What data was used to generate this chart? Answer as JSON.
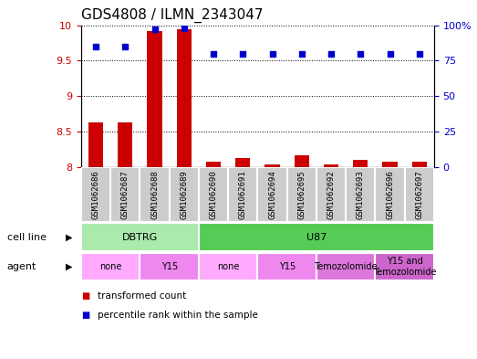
{
  "title": "GDS4808 / ILMN_2343047",
  "samples": [
    "GSM1062686",
    "GSM1062687",
    "GSM1062688",
    "GSM1062689",
    "GSM1062690",
    "GSM1062691",
    "GSM1062694",
    "GSM1062695",
    "GSM1062692",
    "GSM1062693",
    "GSM1062696",
    "GSM1062697"
  ],
  "transformed_count": [
    8.63,
    8.63,
    9.92,
    9.94,
    8.07,
    8.12,
    8.03,
    8.17,
    8.03,
    8.1,
    8.07,
    8.07
  ],
  "percentile_rank": [
    85,
    85,
    97,
    98,
    80,
    80,
    80,
    80,
    80,
    80,
    80,
    80
  ],
  "ylim_left": [
    8.0,
    10.0
  ],
  "ylim_right": [
    0,
    100
  ],
  "yticks_left": [
    8.0,
    8.5,
    9.0,
    9.5,
    10.0
  ],
  "yticks_right": [
    0,
    25,
    50,
    75,
    100
  ],
  "bar_color": "#cc0000",
  "dot_color": "#0000cc",
  "sample_box_color": "#cccccc",
  "cell_line_groups": [
    {
      "label": "DBTRG",
      "start": 0,
      "end": 3,
      "color": "#aaeaaa"
    },
    {
      "label": "U87",
      "start": 4,
      "end": 11,
      "color": "#55cc55"
    }
  ],
  "agent_groups": [
    {
      "label": "none",
      "start": 0,
      "end": 1,
      "color": "#ffaaff"
    },
    {
      "label": "Y15",
      "start": 2,
      "end": 3,
      "color": "#ee88ee"
    },
    {
      "label": "none",
      "start": 4,
      "end": 5,
      "color": "#ffaaff"
    },
    {
      "label": "Y15",
      "start": 6,
      "end": 7,
      "color": "#ee88ee"
    },
    {
      "label": "Temozolomide",
      "start": 8,
      "end": 9,
      "color": "#dd77dd"
    },
    {
      "label": "Y15 and\nTemozolomide",
      "start": 10,
      "end": 11,
      "color": "#cc66cc"
    }
  ],
  "legend_items": [
    {
      "label": "transformed count",
      "color": "#cc0000"
    },
    {
      "label": "percentile rank within the sample",
      "color": "#0000cc"
    }
  ],
  "title_fontsize": 11,
  "axis_fontsize": 8,
  "sample_fontsize": 6.5,
  "label_fontsize": 8,
  "group_fontsize": 8,
  "agent_fontsize": 7
}
